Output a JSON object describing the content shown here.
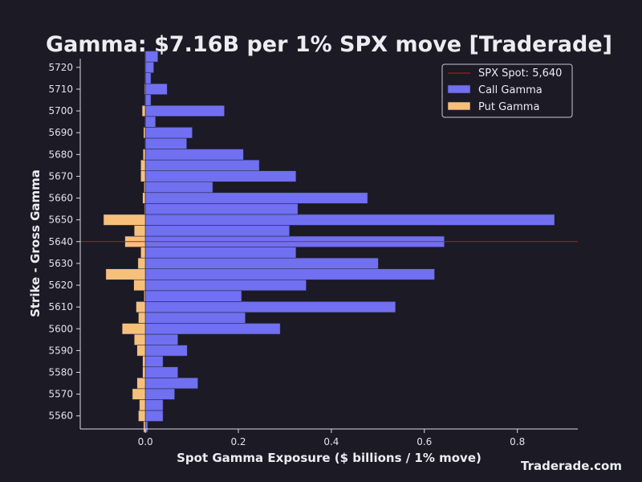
{
  "chart_data": {
    "type": "bar",
    "orientation": "horizontal",
    "title": "Gamma: $7.16B per 1% SPX move [Traderade]",
    "xlabel": "Spot Gamma Exposure ($ billions / 1% move)",
    "ylabel": "Strike - Gross Gamma",
    "xlim": [
      -0.14,
      0.93
    ],
    "ylim": [
      5554,
      5724
    ],
    "xticks": [
      0.0,
      0.2,
      0.4,
      0.6,
      0.8
    ],
    "xtick_labels": [
      "0.0",
      "0.2",
      "0.4",
      "0.6",
      "0.8"
    ],
    "yticks": [
      5560,
      5570,
      5580,
      5590,
      5600,
      5610,
      5620,
      5630,
      5640,
      5650,
      5660,
      5670,
      5680,
      5690,
      5700,
      5710,
      5720
    ],
    "ytick_labels": [
      "5560",
      "5570",
      "5580",
      "5590",
      "5600",
      "5610",
      "5620",
      "5630",
      "5640",
      "5650",
      "5660",
      "5670",
      "5680",
      "5690",
      "5700",
      "5710",
      "5720"
    ],
    "grid": false,
    "legend_position": "top-right",
    "spot": {
      "name": "SPX Spot: 5,640",
      "value": 5640,
      "color": "#c0191f"
    },
    "strikes": [
      5555,
      5560,
      5565,
      5570,
      5575,
      5580,
      5585,
      5590,
      5595,
      5600,
      5605,
      5610,
      5615,
      5620,
      5625,
      5630,
      5635,
      5640,
      5645,
      5650,
      5655,
      5660,
      5665,
      5670,
      5675,
      5680,
      5685,
      5690,
      5695,
      5700,
      5705,
      5710,
      5715,
      5720,
      5725
    ],
    "series": [
      {
        "name": "Call Gamma",
        "color": "#7070f0",
        "values": [
          0.005,
          0.038,
          0.038,
          0.063,
          0.113,
          0.07,
          0.038,
          0.09,
          0.07,
          0.29,
          0.215,
          0.538,
          0.207,
          0.346,
          0.622,
          0.501,
          0.324,
          0.643,
          0.31,
          0.88,
          0.328,
          0.478,
          0.145,
          0.324,
          0.245,
          0.211,
          0.089,
          0.101,
          0.022,
          0.17,
          0.012,
          0.047,
          0.012,
          0.018,
          0.027
        ]
      },
      {
        "name": "Put Gamma",
        "color": "#f7c07a",
        "values": [
          -0.004,
          -0.015,
          -0.013,
          -0.028,
          -0.018,
          -0.006,
          -0.006,
          -0.018,
          -0.024,
          -0.05,
          -0.015,
          -0.02,
          -0.003,
          -0.025,
          -0.085,
          -0.016,
          -0.01,
          -0.044,
          -0.024,
          -0.09,
          -0.002,
          -0.006,
          -0.003,
          -0.01,
          -0.01,
          -0.005,
          -0.001,
          -0.004,
          -0.001,
          -0.007,
          -0.001,
          -0.002,
          -0.001,
          -0.001,
          -0.001
        ]
      }
    ]
  },
  "watermark": "Traderade.com"
}
